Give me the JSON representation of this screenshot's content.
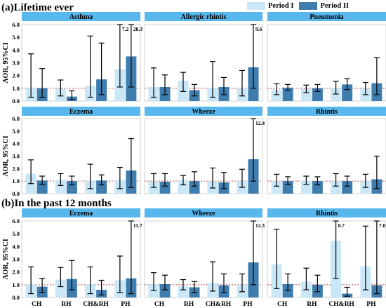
{
  "sections": [
    {
      "label": "(a)Lifetime ever"
    },
    {
      "label": "(b)In the past 12 months"
    }
  ],
  "legend": [
    {
      "label": "Period I",
      "color": "#c9e7f7"
    },
    {
      "label": "Period II",
      "color": "#3f7dae"
    }
  ],
  "chart_data": {
    "type": "bar",
    "categories": [
      "CH",
      "RH",
      "CH&RH",
      "PH"
    ],
    "ylabel": "AOR, 95%CI",
    "ylim": [
      0,
      6
    ],
    "yticks": [
      "0.0",
      "1.0",
      "2.0",
      "3.0",
      "4.0",
      "5.0",
      "6.0"
    ],
    "reference_line": 1.0,
    "series_colors": {
      "Period I": "#c9e7f7",
      "Period II": "#3f7dae"
    },
    "panels": [
      {
        "title": "Asthma",
        "row": 0,
        "col": 0,
        "period1": [
          {
            "v": 1.0,
            "lo": 0.3,
            "hi": 3.7
          },
          {
            "v": 0.95,
            "lo": 0.4,
            "hi": 1.65
          },
          {
            "v": 1.2,
            "lo": 0.3,
            "hi": 5.1
          },
          {
            "v": 2.5,
            "lo": 1.1,
            "hi": 6.0,
            "label": "7.2"
          }
        ],
        "period2": [
          {
            "v": 1.0,
            "lo": 0.3,
            "hi": 2.55
          },
          {
            "v": 0.35,
            "lo": 0.1,
            "hi": 0.8
          },
          {
            "v": 1.7,
            "lo": 0.5,
            "hi": 4.55
          },
          {
            "v": 3.5,
            "lo": 1.1,
            "hi": 6.0,
            "label": "28.3"
          }
        ]
      },
      {
        "title": "Allergic rhintis",
        "row": 0,
        "col": 1,
        "period1": [
          {
            "v": 1.1,
            "lo": 0.3,
            "hi": 2.6
          },
          {
            "v": 1.6,
            "lo": 0.75,
            "hi": 2.25
          },
          {
            "v": 1.05,
            "lo": 0.3,
            "hi": 3.1
          },
          {
            "v": 1.0,
            "lo": 0.4,
            "hi": 2.4
          }
        ],
        "period2": [
          {
            "v": 1.1,
            "lo": 0.5,
            "hi": 2.05
          },
          {
            "v": 0.85,
            "lo": 0.4,
            "hi": 1.3
          },
          {
            "v": 1.1,
            "lo": 0.5,
            "hi": 1.85
          },
          {
            "v": 2.65,
            "lo": 1.0,
            "hi": 6.0,
            "label": "9.6"
          }
        ]
      },
      {
        "title": "Pneumonia",
        "row": 0,
        "col": 2,
        "period1": [
          {
            "v": 0.9,
            "lo": 0.5,
            "hi": 1.35
          },
          {
            "v": 0.95,
            "lo": 0.65,
            "hi": 1.25
          },
          {
            "v": 1.0,
            "lo": 0.55,
            "hi": 1.55
          },
          {
            "v": 0.95,
            "lo": 0.5,
            "hi": 1.45
          }
        ],
        "period2": [
          {
            "v": 1.05,
            "lo": 0.85,
            "hi": 1.3
          },
          {
            "v": 1.0,
            "lo": 0.75,
            "hi": 1.3
          },
          {
            "v": 1.3,
            "lo": 0.9,
            "hi": 1.75
          },
          {
            "v": 1.4,
            "lo": 0.5,
            "hi": 3.4
          }
        ]
      },
      {
        "title": "Eczema",
        "row": 1,
        "col": 0,
        "period1": [
          {
            "v": 1.6,
            "lo": 0.8,
            "hi": 2.7
          },
          {
            "v": 1.1,
            "lo": 0.65,
            "hi": 1.6
          },
          {
            "v": 1.05,
            "lo": 0.4,
            "hi": 2.35
          },
          {
            "v": 1.1,
            "lo": 0.4,
            "hi": 2.1
          }
        ],
        "period2": [
          {
            "v": 1.05,
            "lo": 0.75,
            "hi": 1.4
          },
          {
            "v": 1.0,
            "lo": 0.7,
            "hi": 1.4
          },
          {
            "v": 1.05,
            "lo": 0.7,
            "hi": 1.5
          },
          {
            "v": 1.85,
            "lo": 0.5,
            "hi": 4.4
          }
        ]
      },
      {
        "title": "Wheeze",
        "row": 1,
        "col": 1,
        "period1": [
          {
            "v": 0.95,
            "lo": 0.5,
            "hi": 1.6
          },
          {
            "v": 1.1,
            "lo": 0.7,
            "hi": 1.45
          },
          {
            "v": 1.0,
            "lo": 0.45,
            "hi": 2.05
          },
          {
            "v": 1.0,
            "lo": 0.5,
            "hi": 1.95
          }
        ],
        "period2": [
          {
            "v": 0.95,
            "lo": 0.6,
            "hi": 1.6
          },
          {
            "v": 1.0,
            "lo": 0.6,
            "hi": 1.75
          },
          {
            "v": 0.9,
            "lo": 0.4,
            "hi": 1.7
          },
          {
            "v": 2.75,
            "lo": 1.0,
            "hi": 6.0,
            "label": "12.4"
          }
        ]
      },
      {
        "title": "Rhintis",
        "row": 1,
        "col": 2,
        "period1": [
          {
            "v": 1.0,
            "lo": 0.6,
            "hi": 1.55
          },
          {
            "v": 1.05,
            "lo": 0.75,
            "hi": 1.4
          },
          {
            "v": 1.0,
            "lo": 0.6,
            "hi": 1.6
          },
          {
            "v": 1.0,
            "lo": 0.5,
            "hi": 1.55
          }
        ],
        "period2": [
          {
            "v": 1.0,
            "lo": 0.75,
            "hi": 1.35
          },
          {
            "v": 1.0,
            "lo": 0.7,
            "hi": 1.35
          },
          {
            "v": 1.0,
            "lo": 0.6,
            "hi": 1.4
          },
          {
            "v": 1.15,
            "lo": 0.4,
            "hi": 3.0
          }
        ]
      },
      {
        "title": "Eczema",
        "row": 2,
        "col": 0,
        "period1": [
          {
            "v": 1.05,
            "lo": 0.3,
            "hi": 2.4
          },
          {
            "v": 1.4,
            "lo": 0.85,
            "hi": 2.35
          },
          {
            "v": 1.05,
            "lo": 0.3,
            "hi": 2.4
          },
          {
            "v": 1.35,
            "lo": 0.4,
            "hi": 3.25
          }
        ],
        "period2": [
          {
            "v": 0.85,
            "lo": 0.4,
            "hi": 1.5
          },
          {
            "v": 1.45,
            "lo": 0.6,
            "hi": 2.9
          },
          {
            "v": 0.6,
            "lo": 0.2,
            "hi": 1.35
          },
          {
            "v": 1.5,
            "lo": 0.3,
            "hi": 6.0,
            "label": "11.7"
          }
        ]
      },
      {
        "title": "Wheeze",
        "row": 2,
        "col": 1,
        "period1": [
          {
            "v": 1.05,
            "lo": 0.55,
            "hi": 1.95
          },
          {
            "v": 0.9,
            "lo": 0.6,
            "hi": 1.4
          },
          {
            "v": 1.15,
            "lo": 0.5,
            "hi": 2.8
          },
          {
            "v": 1.0,
            "lo": 0.45,
            "hi": 1.85
          }
        ],
        "period2": [
          {
            "v": 1.05,
            "lo": 0.6,
            "hi": 1.75
          },
          {
            "v": 0.8,
            "lo": 0.4,
            "hi": 1.25
          },
          {
            "v": 0.95,
            "lo": 0.4,
            "hi": 1.85
          },
          {
            "v": 2.75,
            "lo": 1.0,
            "hi": 6.0,
            "label": "12.3"
          }
        ]
      },
      {
        "title": "Rhintis",
        "row": 2,
        "col": 2,
        "period1": [
          {
            "v": 2.6,
            "lo": 0.7,
            "hi": 5.35
          },
          {
            "v": 1.25,
            "lo": 0.6,
            "hi": 2.3
          },
          {
            "v": 4.45,
            "lo": 1.5,
            "hi": 6.0,
            "label": "8.7"
          },
          {
            "v": 2.45,
            "lo": 0.6,
            "hi": 5.6
          }
        ],
        "period2": [
          {
            "v": 1.05,
            "lo": 0.55,
            "hi": 1.85
          },
          {
            "v": 1.0,
            "lo": 0.45,
            "hi": 1.75
          },
          {
            "v": 0.3,
            "lo": 0.1,
            "hi": 0.8
          },
          {
            "v": 0.95,
            "lo": 0.3,
            "hi": 6.0,
            "label": "7.0"
          }
        ]
      }
    ]
  }
}
